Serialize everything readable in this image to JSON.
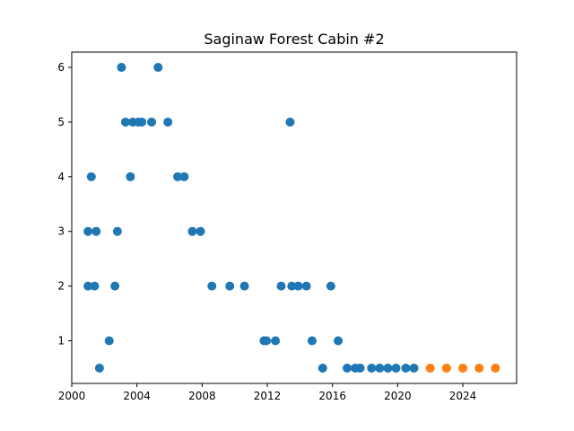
{
  "chart_data": {
    "type": "scatter",
    "title": "Saginaw Forest Cabin #2",
    "xlabel": "",
    "ylabel": "",
    "xlim": [
      2000.0,
      2027.3
    ],
    "ylim": [
      0.22,
      6.28
    ],
    "x_ticks": [
      2000,
      2004,
      2008,
      2012,
      2016,
      2020,
      2024
    ],
    "x_tick_labels": [
      "2000",
      "2004",
      "2008",
      "2012",
      "2016",
      "2020",
      "2024"
    ],
    "y_ticks": [
      1,
      2,
      3,
      4,
      5,
      6
    ],
    "y_tick_labels": [
      "1",
      "2",
      "3",
      "4",
      "5",
      "6"
    ],
    "grid": false,
    "colors": {
      "observed": "#1f77b4",
      "projected": "#ff7f0e"
    },
    "series": [
      {
        "color": "#1f77b4",
        "points": [
          {
            "x": 2001.0,
            "y": 2
          },
          {
            "x": 2001.0,
            "y": 3
          },
          {
            "x": 2001.2,
            "y": 4
          },
          {
            "x": 2001.4,
            "y": 2
          },
          {
            "x": 2001.5,
            "y": 3
          },
          {
            "x": 2001.7,
            "y": 0.5
          },
          {
            "x": 2002.3,
            "y": 1
          },
          {
            "x": 2002.65,
            "y": 2
          },
          {
            "x": 2002.8,
            "y": 3
          },
          {
            "x": 2003.05,
            "y": 6
          },
          {
            "x": 2003.3,
            "y": 5
          },
          {
            "x": 2003.6,
            "y": 4
          },
          {
            "x": 2003.75,
            "y": 5
          },
          {
            "x": 2004.1,
            "y": 5
          },
          {
            "x": 2004.3,
            "y": 5
          },
          {
            "x": 2004.9,
            "y": 5
          },
          {
            "x": 2005.3,
            "y": 6
          },
          {
            "x": 2005.9,
            "y": 5
          },
          {
            "x": 2006.5,
            "y": 4
          },
          {
            "x": 2006.9,
            "y": 4
          },
          {
            "x": 2007.4,
            "y": 3
          },
          {
            "x": 2007.9,
            "y": 3
          },
          {
            "x": 2008.6,
            "y": 2
          },
          {
            "x": 2009.7,
            "y": 2
          },
          {
            "x": 2010.6,
            "y": 2
          },
          {
            "x": 2011.8,
            "y": 1
          },
          {
            "x": 2011.95,
            "y": 1
          },
          {
            "x": 2012.5,
            "y": 1
          },
          {
            "x": 2012.85,
            "y": 2
          },
          {
            "x": 2013.4,
            "y": 5
          },
          {
            "x": 2013.5,
            "y": 2
          },
          {
            "x": 2013.9,
            "y": 2
          },
          {
            "x": 2014.4,
            "y": 2
          },
          {
            "x": 2014.75,
            "y": 1
          },
          {
            "x": 2015.4,
            "y": 0.5
          },
          {
            "x": 2015.9,
            "y": 2
          },
          {
            "x": 2016.35,
            "y": 1
          },
          {
            "x": 2016.9,
            "y": 0.5
          },
          {
            "x": 2017.4,
            "y": 0.5
          },
          {
            "x": 2017.7,
            "y": 0.5
          },
          {
            "x": 2018.4,
            "y": 0.5
          },
          {
            "x": 2018.9,
            "y": 0.5
          },
          {
            "x": 2019.4,
            "y": 0.5
          },
          {
            "x": 2019.9,
            "y": 0.5
          },
          {
            "x": 2020.5,
            "y": 0.5
          },
          {
            "x": 2021.0,
            "y": 0.5
          }
        ]
      },
      {
        "color": "#ff7f0e",
        "points": [
          {
            "x": 2022.0,
            "y": 0.5
          },
          {
            "x": 2023.0,
            "y": 0.5
          },
          {
            "x": 2024.0,
            "y": 0.5
          },
          {
            "x": 2025.0,
            "y": 0.5
          },
          {
            "x": 2026.0,
            "y": 0.5
          }
        ]
      }
    ]
  }
}
